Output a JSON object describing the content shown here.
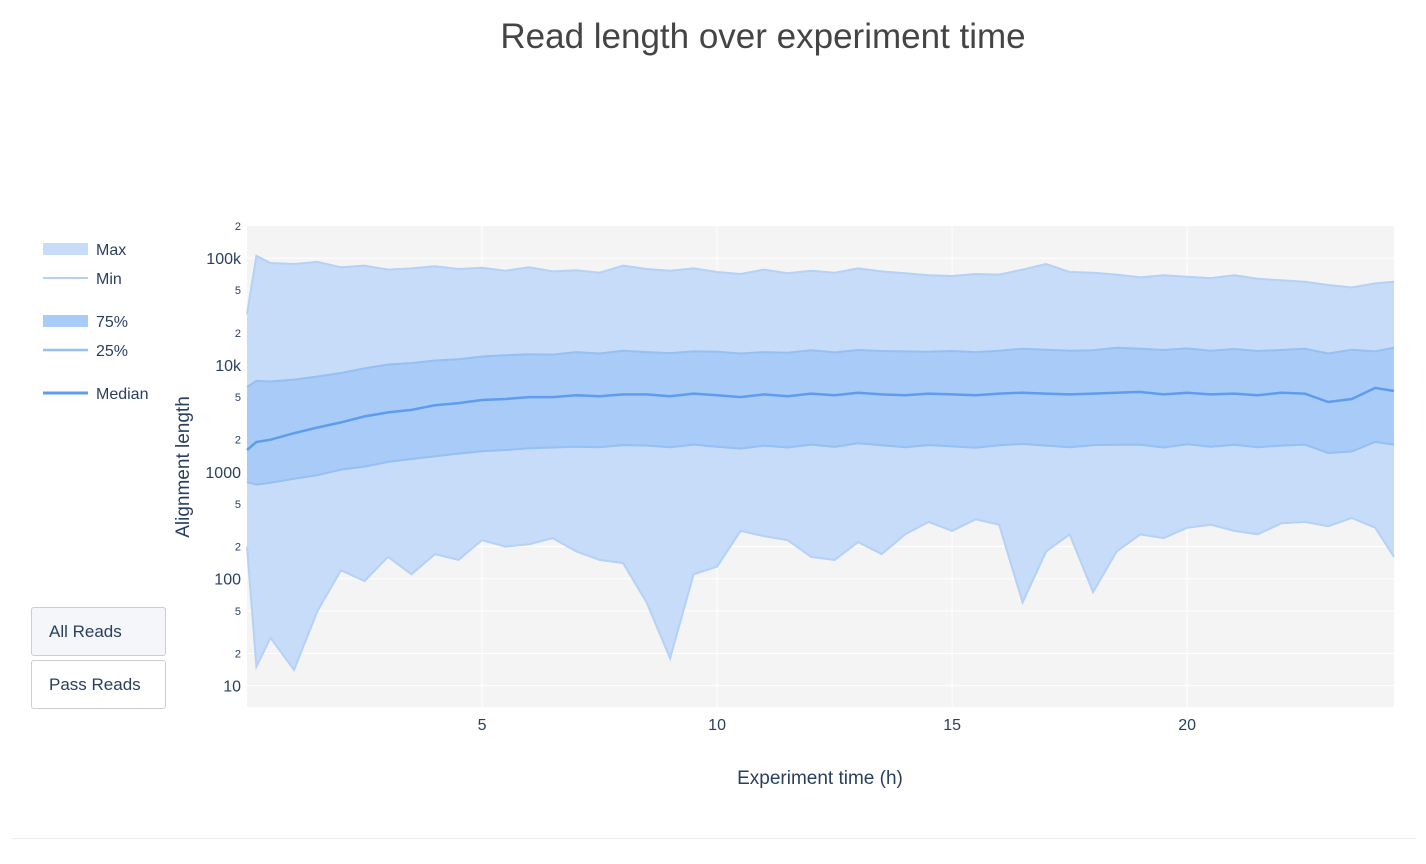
{
  "chart_data": {
    "type": "area",
    "title": "Read length over experiment time",
    "xlabel": "Experiment time (h)",
    "ylabel": "Alignment length",
    "xlim": [
      0,
      24.4
    ],
    "ylim_log10": [
      0.8,
      5.3
    ],
    "yscale": "log",
    "x_ticks": [
      {
        "value": 5,
        "label": "5"
      },
      {
        "value": 10,
        "label": "10"
      },
      {
        "value": 15,
        "label": "15"
      },
      {
        "value": 20,
        "label": "20"
      }
    ],
    "y_major_ticks": [
      {
        "value": 10,
        "label": "10"
      },
      {
        "value": 100,
        "label": "100"
      },
      {
        "value": 1000,
        "label": "1000"
      },
      {
        "value": 10000,
        "label": "10k"
      },
      {
        "value": 100000,
        "label": "100k"
      }
    ],
    "y_minor_ticks": [
      {
        "value": 20,
        "label": "2"
      },
      {
        "value": 50,
        "label": "5"
      },
      {
        "value": 200,
        "label": "2"
      },
      {
        "value": 500,
        "label": "5"
      },
      {
        "value": 2000,
        "label": "2"
      },
      {
        "value": 5000,
        "label": "5"
      },
      {
        "value": 20000,
        "label": "2"
      },
      {
        "value": 50000,
        "label": "5"
      },
      {
        "value": 200000,
        "label": "2"
      }
    ],
    "legend": [
      "Max",
      "Min",
      "75%",
      "25%",
      "Median"
    ],
    "legend_position": "left",
    "colors": {
      "outer_band": "#c6dcf8",
      "inner_band": "#a9cbf7",
      "median": "#5e9cf0",
      "outer_line": "#b5d1f7",
      "inner_line": "#96bff4",
      "plot_bg": "#f4f4f4",
      "grid": "#ffffff",
      "text": "#2a3f5f"
    },
    "x": [
      0.0,
      0.2,
      0.5,
      1.0,
      1.5,
      2.0,
      2.5,
      3.0,
      3.5,
      4.0,
      4.5,
      5.0,
      5.5,
      6.0,
      6.5,
      7.0,
      7.5,
      8.0,
      8.5,
      9.0,
      9.5,
      10.0,
      10.5,
      11.0,
      11.5,
      12.0,
      12.5,
      13.0,
      13.5,
      14.0,
      14.5,
      15.0,
      15.5,
      16.0,
      16.5,
      17.0,
      17.5,
      18.0,
      18.5,
      19.0,
      19.5,
      20.0,
      20.5,
      21.0,
      21.5,
      22.0,
      22.5,
      23.0,
      23.5,
      24.0,
      24.4
    ],
    "series": [
      {
        "name": "Max",
        "values": [
          30000,
          105000,
          90000,
          88000,
          92000,
          82000,
          85000,
          78000,
          80000,
          84000,
          79000,
          81000,
          76000,
          82000,
          75000,
          77000,
          73000,
          85000,
          79000,
          76000,
          80000,
          74000,
          71000,
          78000,
          72000,
          76000,
          73000,
          80000,
          75000,
          72000,
          69000,
          68000,
          71000,
          70000,
          78000,
          88000,
          74000,
          73000,
          70000,
          66000,
          69000,
          67000,
          65000,
          69000,
          64000,
          62000,
          60000,
          56000,
          53000,
          58000,
          60000
        ]
      },
      {
        "name": "75%",
        "values": [
          6200,
          7100,
          7000,
          7300,
          7800,
          8400,
          9300,
          10100,
          10400,
          11000,
          11300,
          12000,
          12300,
          12600,
          12500,
          13200,
          12800,
          13600,
          13200,
          12900,
          13400,
          13300,
          12800,
          13200,
          13000,
          13700,
          13100,
          13800,
          13500,
          13400,
          13300,
          13500,
          13200,
          13600,
          14200,
          13900,
          13600,
          13700,
          14500,
          14200,
          13800,
          14300,
          13600,
          14100,
          13500,
          13800,
          14200,
          12800,
          13900,
          13400,
          14500
        ]
      },
      {
        "name": "Median",
        "values": [
          1600,
          1900,
          2000,
          2300,
          2600,
          2900,
          3300,
          3600,
          3800,
          4200,
          4400,
          4700,
          4800,
          5000,
          5000,
          5200,
          5100,
          5300,
          5300,
          5100,
          5400,
          5200,
          5000,
          5300,
          5100,
          5400,
          5200,
          5500,
          5300,
          5200,
          5400,
          5300,
          5200,
          5400,
          5500,
          5400,
          5300,
          5400,
          5500,
          5600,
          5300,
          5500,
          5300,
          5400,
          5200,
          5500,
          5400,
          4500,
          4800,
          6100,
          5700
        ]
      },
      {
        "name": "25%",
        "values": [
          800,
          760,
          790,
          860,
          930,
          1050,
          1120,
          1240,
          1320,
          1400,
          1480,
          1560,
          1600,
          1660,
          1690,
          1720,
          1700,
          1780,
          1760,
          1700,
          1800,
          1720,
          1650,
          1760,
          1690,
          1800,
          1710,
          1850,
          1770,
          1700,
          1780,
          1730,
          1680,
          1770,
          1820,
          1760,
          1700,
          1780,
          1790,
          1800,
          1690,
          1810,
          1720,
          1790,
          1700,
          1760,
          1800,
          1500,
          1550,
          1900,
          1800
        ]
      },
      {
        "name": "Min",
        "values": [
          200,
          15,
          28,
          14,
          50,
          120,
          95,
          160,
          110,
          170,
          150,
          230,
          200,
          210,
          240,
          180,
          150,
          140,
          60,
          18,
          110,
          130,
          280,
          250,
          230,
          160,
          150,
          220,
          170,
          260,
          340,
          280,
          360,
          320,
          60,
          180,
          260,
          75,
          180,
          260,
          240,
          300,
          320,
          280,
          260,
          330,
          340,
          310,
          370,
          300,
          160
        ]
      }
    ]
  },
  "buttons": {
    "all_reads": "All Reads",
    "pass_reads": "Pass Reads"
  }
}
